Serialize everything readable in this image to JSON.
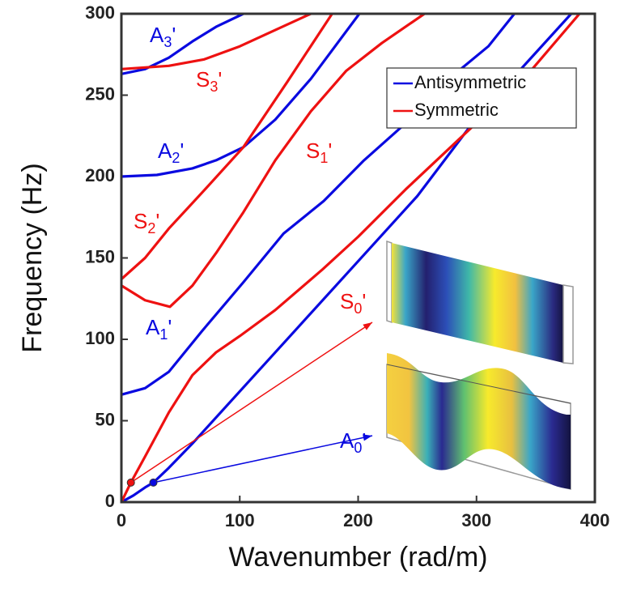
{
  "chart_data": {
    "type": "line",
    "xlabel": "Wavenumber (rad/m)",
    "ylabel": "Frequency (Hz)",
    "xlim": [
      0,
      400
    ],
    "ylim": [
      0,
      300
    ],
    "xticks": [
      0,
      100,
      200,
      300,
      400
    ],
    "yticks": [
      0,
      50,
      100,
      150,
      200,
      250,
      300
    ],
    "legend": "upper right",
    "series": [
      {
        "name": "Antisymmetric",
        "color": "#0a0ae0",
        "lines": [
          {
            "x": [
              0,
              10,
              20,
              27,
              40,
              60,
              100,
              150,
              200,
              250,
              300,
              350,
              380
            ],
            "values": [
              0,
              4,
              9,
              12,
              21,
              36,
              68,
              108,
              148,
              188,
              236,
              276,
              300
            ]
          },
          {
            "x": [
              0,
              20,
              40,
              68,
              103,
              137,
              171,
              205,
              239,
              280,
              310,
              332
            ],
            "values": [
              66,
              70,
              80,
              105,
              135,
              165,
              185,
              210,
              232,
              262,
              280,
              300
            ]
          },
          {
            "x": [
              0,
              30,
              60,
              80,
              103,
              130,
              160,
              201
            ],
            "values": [
              200,
              201,
              205,
              210,
              218,
              235,
              260,
              300
            ]
          },
          {
            "x": [
              0,
              20,
              40,
              60,
              80,
              103
            ],
            "values": [
              263,
              266,
              273,
              283,
              292,
              300
            ]
          }
        ]
      },
      {
        "name": "Symmetric",
        "color": "#ee1111",
        "lines": [
          {
            "x": [
              0,
              8,
              20,
              40,
              60,
              80,
              100,
              130,
              170,
              200,
              240,
              300,
              340,
              387
            ],
            "values": [
              0,
              12,
              28,
              55,
              78,
              92,
              102,
              118,
              143,
              163,
              192,
              233,
              260,
              300
            ]
          },
          {
            "x": [
              0,
              20,
              41,
              60,
              80,
              103,
              130,
              160,
              190,
              220,
              256
            ],
            "values": [
              133,
              124,
              120,
              133,
              153,
              178,
              210,
              240,
              265,
              282,
              300
            ]
          },
          {
            "x": [
              0,
              20,
              40,
              68,
              103,
              140,
              178
            ],
            "values": [
              137,
              150,
              168,
              190,
              218,
              258,
              300
            ]
          },
          {
            "x": [
              0,
              40,
              70,
              100,
              130,
              160
            ],
            "values": [
              266,
              268,
              272,
              280,
              290,
              300
            ]
          }
        ]
      }
    ],
    "markers": [
      {
        "x": 8,
        "y": 12,
        "color": "#ee1111"
      },
      {
        "x": 27,
        "y": 12,
        "color": "#0a0ae0"
      }
    ],
    "annotations": [
      {
        "text": "A3'",
        "color": "#0a0ae0"
      },
      {
        "text": "S3'",
        "color": "#ee1111"
      },
      {
        "text": "A2'",
        "color": "#0a0ae0"
      },
      {
        "text": "S2'",
        "color": "#ee1111"
      },
      {
        "text": "S1'",
        "color": "#ee1111"
      },
      {
        "text": "A1'",
        "color": "#0a0ae0"
      },
      {
        "text": "S0'",
        "color": "#ee1111"
      },
      {
        "text": "A0'",
        "color": "#0a0ae0"
      }
    ]
  }
}
